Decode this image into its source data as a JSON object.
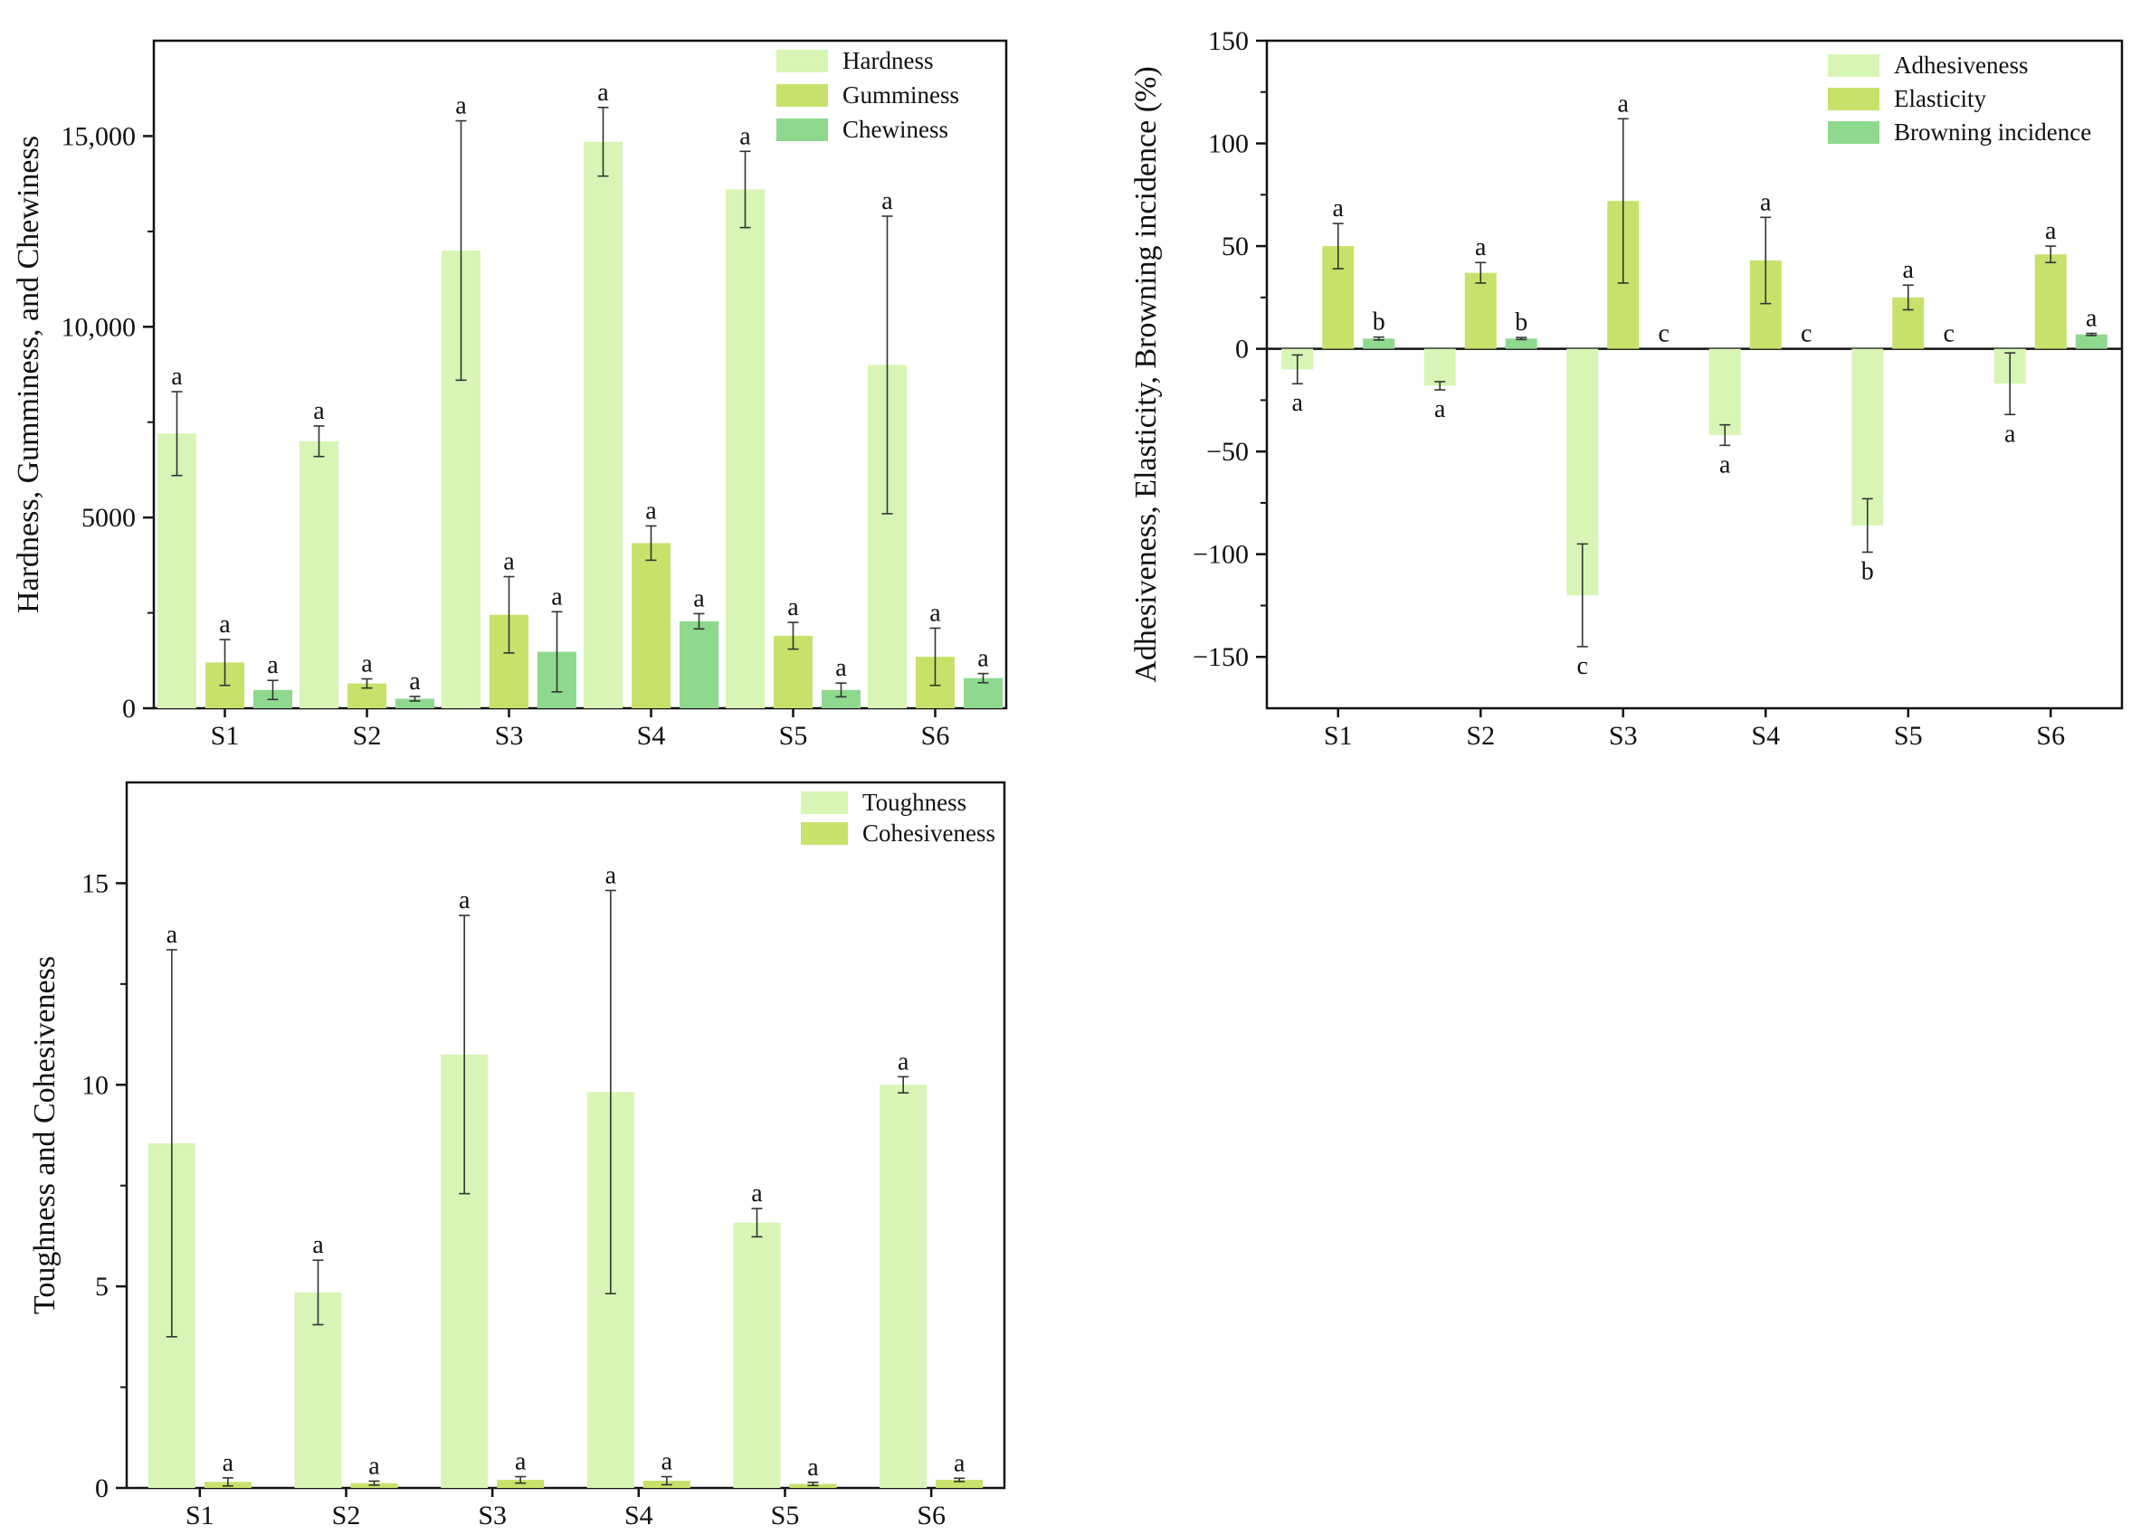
{
  "colors": {
    "light": "#d8f5b5",
    "mid": "#c7e26b",
    "dark": "#8ed98e",
    "axis": "#111111",
    "errorbar": "#333333"
  },
  "chart_data": [
    {
      "id": "top-left",
      "type": "bar",
      "title": "",
      "xlabel": "",
      "ylabel": "Hardness, Gumminess, and Chewiness",
      "categories": [
        "S1",
        "S2",
        "S3",
        "S4",
        "S5",
        "S6"
      ],
      "ylim": [
        0,
        17500
      ],
      "yticks": [
        0,
        5000,
        10000,
        15000
      ],
      "ytick_labels": [
        "0",
        "5000",
        "10,000",
        "15,000"
      ],
      "legend_position": "top-right",
      "series": [
        {
          "name": "Hardness",
          "color_key": "light",
          "values": [
            7200,
            7000,
            12000,
            14850,
            13600,
            9000
          ],
          "errors": [
            1100,
            400,
            3400,
            900,
            1000,
            3900
          ],
          "labels": [
            "a",
            "a",
            "a",
            "a",
            "a",
            "a"
          ]
        },
        {
          "name": "Gumminess",
          "color_key": "mid",
          "values": [
            1200,
            650,
            2450,
            4330,
            1900,
            1350
          ],
          "errors": [
            600,
            120,
            1000,
            450,
            350,
            750
          ],
          "labels": [
            "a",
            "a",
            "a",
            "a",
            "a",
            "a"
          ]
        },
        {
          "name": "Chewiness",
          "color_key": "dark",
          "values": [
            480,
            250,
            1480,
            2280,
            480,
            790
          ],
          "errors": [
            250,
            60,
            1050,
            200,
            180,
            120
          ],
          "labels": [
            "a",
            "a",
            "a",
            "a",
            "a",
            "a"
          ]
        }
      ]
    },
    {
      "id": "top-right",
      "type": "bar",
      "title": "",
      "xlabel": "",
      "ylabel": "Adhesiveness, Elasticity, Browning incidence (%)",
      "categories": [
        "S1",
        "S2",
        "S3",
        "S4",
        "S5",
        "S6"
      ],
      "ylim": [
        -175,
        150
      ],
      "yticks": [
        -150,
        -100,
        -50,
        0,
        50,
        100,
        150
      ],
      "ytick_labels": [
        "−150",
        "−100",
        "−50",
        "0",
        "50",
        "100",
        "150"
      ],
      "legend_position": "top-right",
      "series": [
        {
          "name": "Adhesiveness",
          "color_key": "light",
          "values": [
            -10,
            -18,
            -120,
            -42,
            -86,
            -17
          ],
          "errors": [
            7,
            2,
            25,
            5,
            13,
            15
          ],
          "labels": [
            "a",
            "a",
            "c",
            "a",
            "b",
            "a"
          ]
        },
        {
          "name": "Elasticity",
          "color_key": "mid",
          "values": [
            50,
            37,
            72,
            43,
            25,
            46
          ],
          "errors": [
            11,
            5,
            40,
            21,
            6,
            4
          ],
          "labels": [
            "a",
            "a",
            "a",
            "a",
            "a",
            "a"
          ]
        },
        {
          "name": "Browning incidence",
          "color_key": "dark",
          "values": [
            5,
            5,
            0,
            0,
            0,
            7
          ],
          "errors": [
            0.7,
            0.5,
            0,
            0,
            0,
            0.5
          ],
          "labels": [
            "b",
            "b",
            "c",
            "c",
            "c",
            "a"
          ]
        }
      ]
    },
    {
      "id": "bottom-left",
      "type": "bar",
      "title": "",
      "xlabel": "",
      "ylabel": "Toughness and Cohesiveness",
      "categories": [
        "S1",
        "S2",
        "S3",
        "S4",
        "S5",
        "S6"
      ],
      "ylim": [
        0,
        17.5
      ],
      "yticks": [
        0,
        5,
        10,
        15
      ],
      "ytick_labels": [
        "0",
        "5",
        "10",
        "15"
      ],
      "legend_position": "top-right",
      "series": [
        {
          "name": "Toughness",
          "color_key": "light",
          "values": [
            8.55,
            4.85,
            10.75,
            9.82,
            6.58,
            10.0
          ],
          "errors": [
            4.8,
            0.8,
            3.45,
            5.0,
            0.35,
            0.2
          ],
          "labels": [
            "a",
            "a",
            "a",
            "a",
            "a",
            "a"
          ]
        },
        {
          "name": "Cohesiveness",
          "color_key": "mid",
          "values": [
            0.15,
            0.12,
            0.2,
            0.18,
            0.1,
            0.2
          ],
          "errors": [
            0.1,
            0.05,
            0.08,
            0.1,
            0.04,
            0.04
          ],
          "labels": [
            "a",
            "a",
            "a",
            "a",
            "a",
            "a"
          ]
        }
      ]
    }
  ]
}
